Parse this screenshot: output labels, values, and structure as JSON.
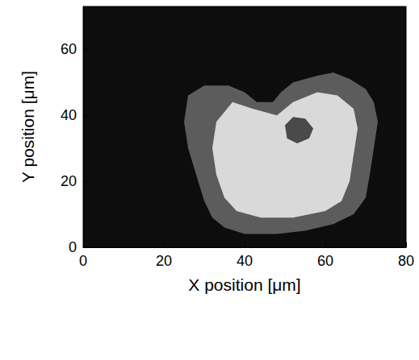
{
  "chart_data": {
    "type": "image",
    "x_label": "X position [μm]",
    "y_label": "Y position [μm]",
    "xlim": [
      0,
      80
    ],
    "xticks": [
      0,
      20,
      40,
      60,
      80
    ],
    "ylim": [
      0,
      73
    ],
    "yticks": [
      0,
      20,
      40,
      60
    ],
    "grid": false,
    "background": "#0d0d0d",
    "regions": [
      {
        "color": "#5c5c5c",
        "points": [
          [
            26,
            46
          ],
          [
            30,
            49
          ],
          [
            36,
            49
          ],
          [
            40,
            47
          ],
          [
            43,
            44
          ],
          [
            47,
            44
          ],
          [
            49,
            47
          ],
          [
            52,
            50
          ],
          [
            58,
            52
          ],
          [
            62,
            53
          ],
          [
            66,
            51
          ],
          [
            70,
            48
          ],
          [
            72,
            44
          ],
          [
            73,
            38
          ],
          [
            72,
            30
          ],
          [
            71,
            22
          ],
          [
            70,
            15
          ],
          [
            67,
            10
          ],
          [
            62,
            7
          ],
          [
            55,
            5
          ],
          [
            48,
            4
          ],
          [
            40,
            4
          ],
          [
            35,
            6
          ],
          [
            32,
            9
          ],
          [
            30,
            14
          ],
          [
            28,
            22
          ],
          [
            26,
            30
          ],
          [
            25,
            38
          ]
        ]
      },
      {
        "color": "#d9d9d9",
        "points": [
          [
            37,
            44
          ],
          [
            42,
            42
          ],
          [
            48,
            40
          ],
          [
            52,
            44
          ],
          [
            58,
            47
          ],
          [
            63,
            46
          ],
          [
            67,
            42
          ],
          [
            68,
            36
          ],
          [
            67,
            28
          ],
          [
            66,
            20
          ],
          [
            64,
            14
          ],
          [
            60,
            11
          ],
          [
            52,
            9
          ],
          [
            44,
            9
          ],
          [
            38,
            11
          ],
          [
            35,
            15
          ],
          [
            33,
            22
          ],
          [
            32,
            30
          ],
          [
            33,
            38
          ]
        ]
      },
      {
        "color": "#4a4a4a",
        "points": [
          [
            50,
            37
          ],
          [
            52,
            39.5
          ],
          [
            55,
            39
          ],
          [
            57,
            36
          ],
          [
            56,
            33
          ],
          [
            53,
            31.5
          ],
          [
            50.5,
            33
          ]
        ]
      }
    ]
  }
}
